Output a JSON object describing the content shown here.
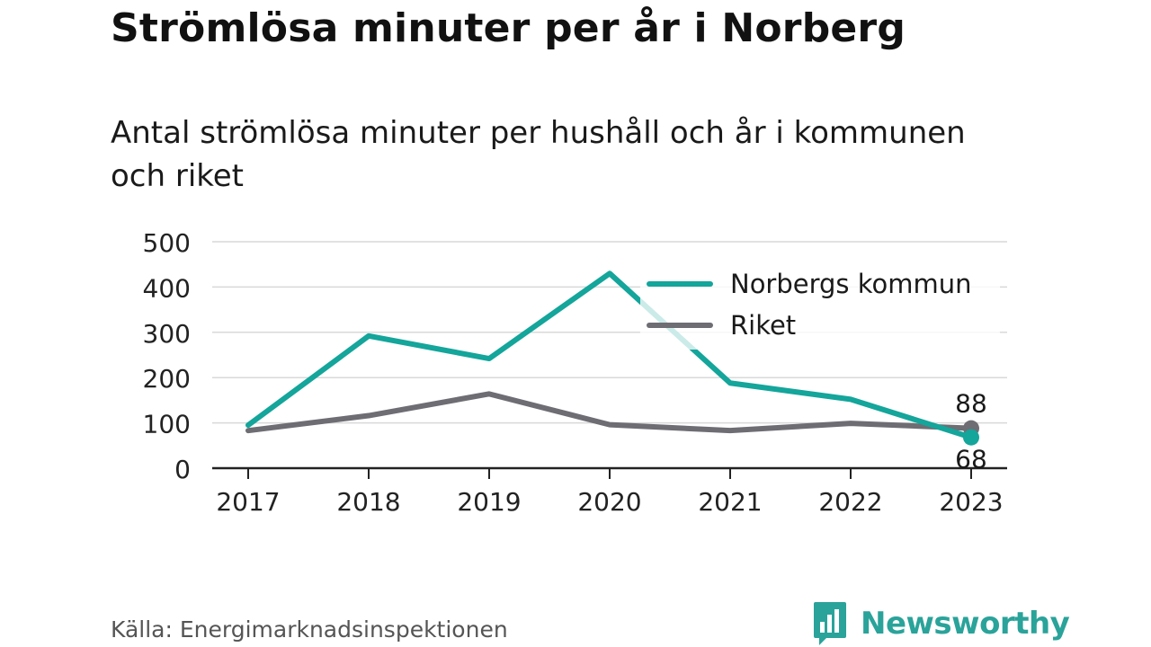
{
  "title": "Strömlösa minuter per år i Norberg",
  "subtitle": "Antal strömlösa minuter per hushåll och år i kommunen och riket",
  "source": "Källa: Energimarknadsinspektionen",
  "brand": {
    "name": "Newsworthy",
    "color": "#2aa39a"
  },
  "chart_data": {
    "type": "line",
    "x": [
      "2017",
      "2018",
      "2019",
      "2020",
      "2021",
      "2022",
      "2023"
    ],
    "ylim": [
      0,
      500
    ],
    "yticks": [
      0,
      100,
      200,
      300,
      400,
      500
    ],
    "grid": true,
    "legend_position": "top-right",
    "series": [
      {
        "name": "Norbergs kommun",
        "color": "#14a59b",
        "values": [
          95,
          292,
          242,
          430,
          188,
          152,
          68
        ]
      },
      {
        "name": "Riket",
        "color": "#6e6d73",
        "values": [
          83,
          116,
          164,
          96,
          83,
          99,
          88
        ]
      }
    ],
    "end_labels": [
      {
        "series": "Riket",
        "text": "88"
      },
      {
        "series": "Norbergs kommun",
        "text": "68"
      }
    ]
  }
}
